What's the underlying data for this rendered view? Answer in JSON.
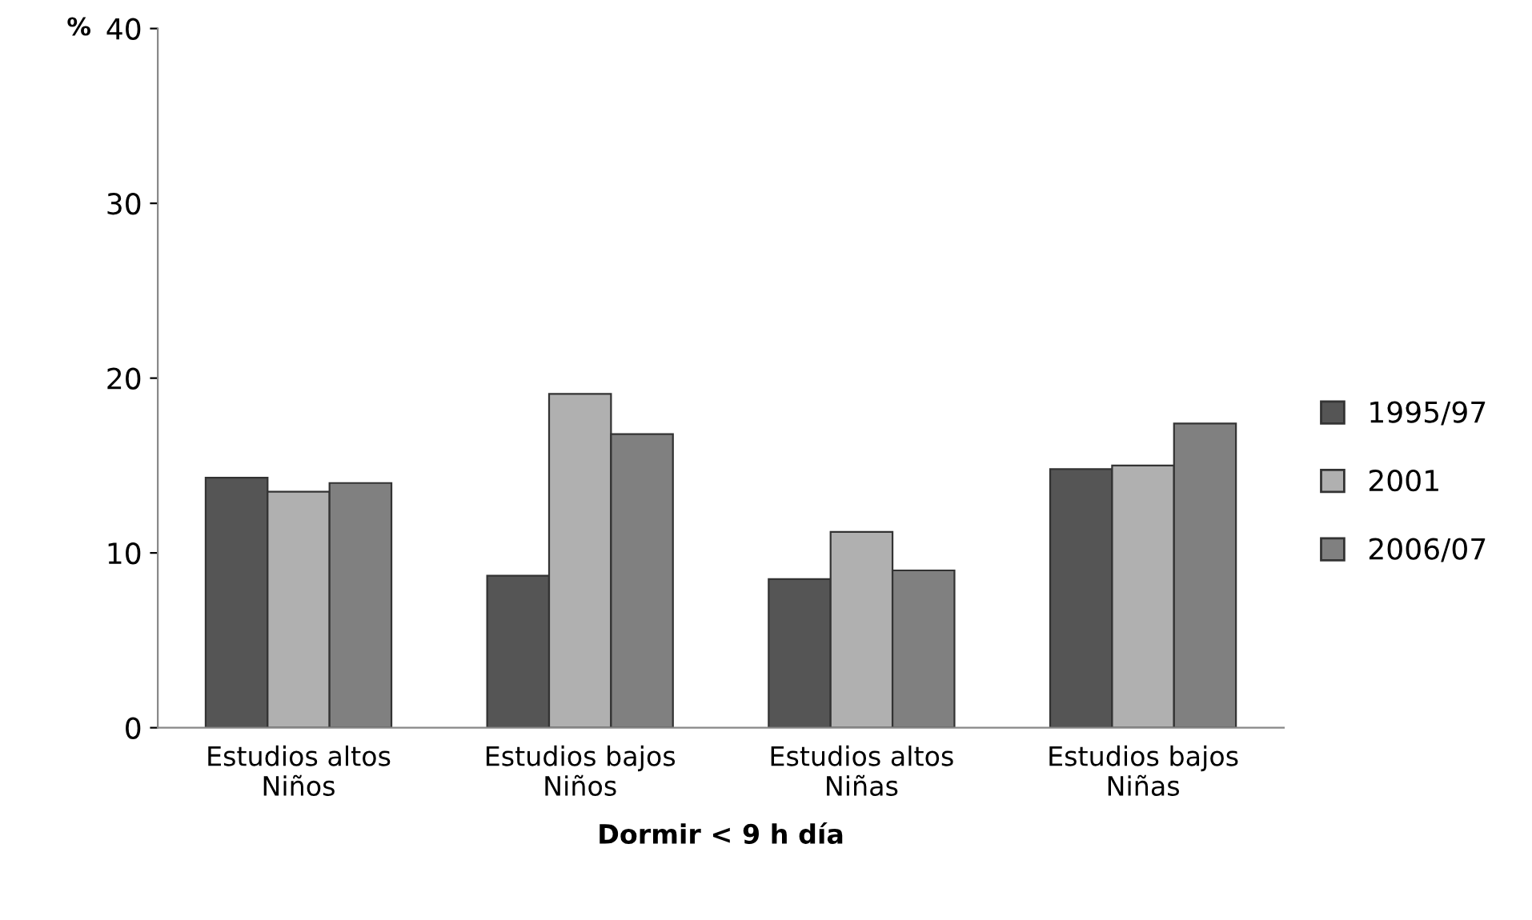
{
  "chart_data": {
    "type": "bar",
    "ylabel": "%",
    "xlabel": "Dormir < 9 h día",
    "categories": [
      "Estudios altos\nNiños",
      "Estudios bajos\nNiños",
      "Estudios altos\nNiñas",
      "Estudios bajos\nNiñas"
    ],
    "series": [
      {
        "name": "1995/97",
        "color": "#555555",
        "values": [
          14.3,
          8.7,
          8.5,
          14.8
        ]
      },
      {
        "name": "2001",
        "color": "#b0b0b0",
        "values": [
          13.5,
          19.1,
          11.2,
          15.0
        ]
      },
      {
        "name": "2006/07",
        "color": "#808080",
        "values": [
          14.0,
          16.8,
          9.0,
          17.4
        ]
      }
    ],
    "ylim": [
      0,
      40
    ],
    "yticks": [
      0,
      10,
      20,
      30,
      40
    ],
    "grid": false,
    "legend": "right"
  }
}
